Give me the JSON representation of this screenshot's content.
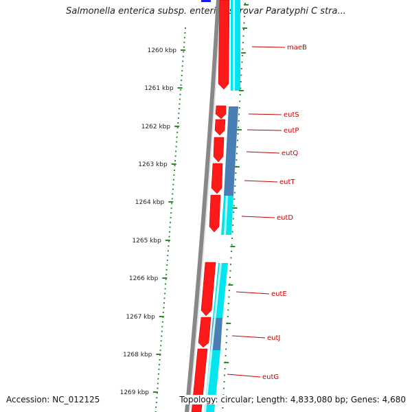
{
  "title": "Salmonella enterica subsp. enterica serovar Paratyphi C stra...",
  "accession_text": "Accession: NC_012125",
  "summary_text": "Topology: circular; Length: 4,833,080 bp; Genes: 4,680",
  "kbp_labels": [
    "1260 kbp",
    "1261 kbp",
    "1262 kbp",
    "1263 kbp",
    "1264 kbp",
    "1265 kbp",
    "1266 kbp",
    "1267 kbp",
    "1268 kbp",
    "1269 kbp"
  ],
  "colors": {
    "backbone": "#888888",
    "forward_gene": "#ff1a1a",
    "cds": "#00e5ee",
    "operon_cds": "#4a7fb5",
    "label_line": "#cc0000",
    "label_text": "#cc0000",
    "tick": "#2a8a2a"
  },
  "genes": [
    {
      "label": "maeB"
    },
    {
      "label": "eutS"
    },
    {
      "label": "eutP"
    },
    {
      "label": "eutQ"
    },
    {
      "label": "eutT"
    },
    {
      "label": "eutD"
    },
    {
      "label": "eutE"
    },
    {
      "label": "eutJ"
    },
    {
      "label": "eutG"
    }
  ]
}
